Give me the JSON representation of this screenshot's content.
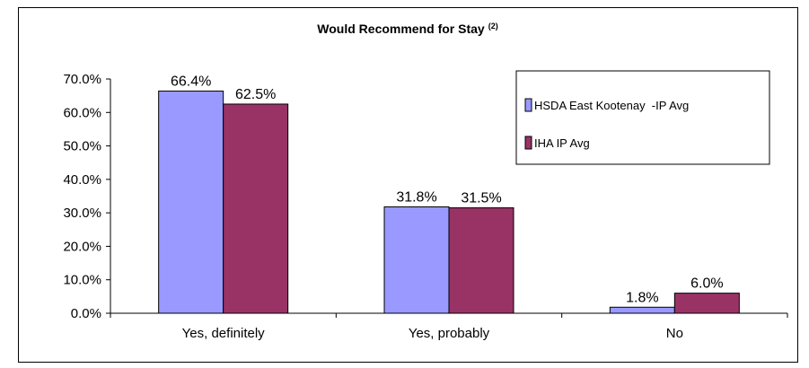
{
  "chart_data": {
    "type": "bar",
    "title": "Would Recommend for Stay",
    "title_superscript": "(2)",
    "categories": [
      "Yes, definitely",
      "Yes, probably",
      "No"
    ],
    "series": [
      {
        "name": "HSDA East Kootenay  -IP Avg",
        "values": [
          66.4,
          31.8,
          1.8
        ],
        "color": "#9999ff"
      },
      {
        "name": "IHA IP Avg",
        "values": [
          62.5,
          31.5,
          6.0
        ],
        "color": "#993366"
      }
    ],
    "data_labels": [
      [
        "66.4%",
        "31.8%",
        "1.8%"
      ],
      [
        "62.5%",
        "31.5%",
        "6.0%"
      ]
    ],
    "yticks": [
      "0.0%",
      "10.0%",
      "20.0%",
      "30.0%",
      "40.0%",
      "50.0%",
      "60.0%",
      "70.0%"
    ],
    "ylim": [
      0,
      70
    ],
    "xlabel": "",
    "ylabel": "",
    "grid": false,
    "legend_position": "top-right"
  }
}
